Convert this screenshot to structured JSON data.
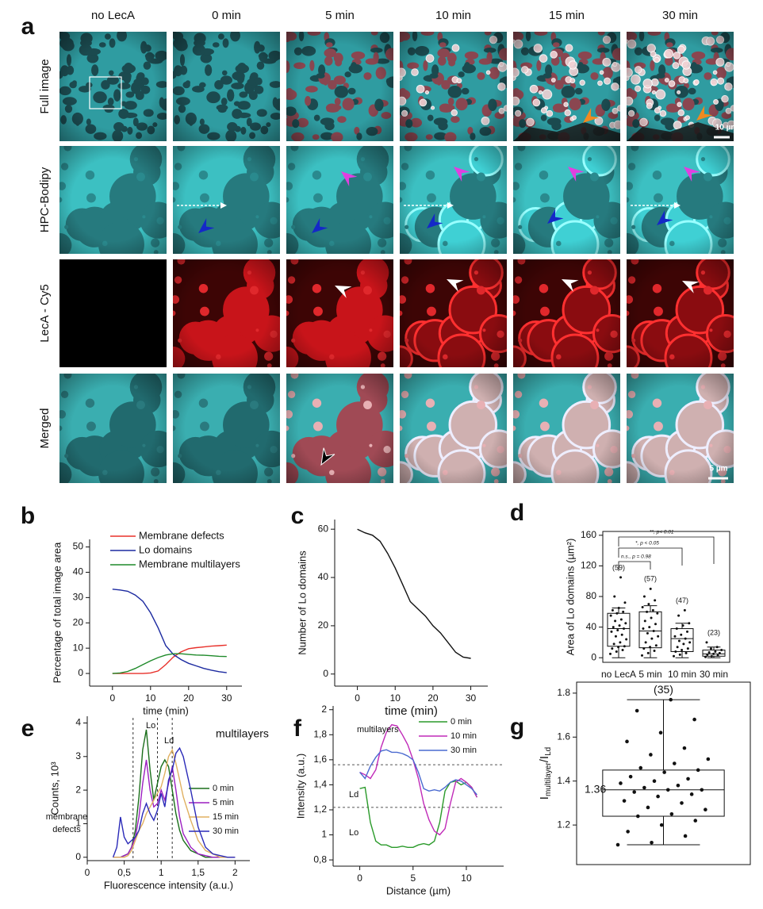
{
  "panel_labels": [
    "a",
    "b",
    "c",
    "d",
    "e",
    "f",
    "g"
  ],
  "panel_a": {
    "columns": [
      "no LecA",
      "0 min",
      "5 min",
      "10 min",
      "15 min",
      "30 min"
    ],
    "rows": [
      "Full image",
      "HPC-Bodipy",
      "LecA - Cy5",
      "Merged"
    ],
    "scale_bars": [
      "10 µm",
      "5 µm"
    ]
  },
  "chart_data": [
    {
      "type": "line",
      "xlabel": "time (min)",
      "ylabel": "Percentage of total image area",
      "x": [
        0,
        2,
        4,
        6,
        8,
        10,
        12,
        14,
        16,
        18,
        20,
        22,
        24,
        26,
        28,
        30
      ],
      "xlim": [
        -6,
        34
      ],
      "xticks": [
        0,
        10,
        20,
        30
      ],
      "ylim": [
        -5,
        53
      ],
      "yticks": [
        0,
        10,
        20,
        30,
        40,
        50
      ],
      "series": [
        {
          "name": "Membrane defects",
          "color": "#e8302a",
          "values": [
            0,
            0,
            0,
            0,
            0,
            0.2,
            1,
            3.5,
            6.5,
            8.5,
            9.8,
            10.2,
            10.5,
            10.8,
            11,
            11.2
          ]
        },
        {
          "name": "Lo domains",
          "color": "#1c2aa0",
          "values": [
            33.3,
            33,
            32.5,
            31,
            28.5,
            24,
            18,
            11,
            7.5,
            5.5,
            4,
            3,
            2,
            1.3,
            0.7,
            0.3
          ]
        },
        {
          "name": "Membrane multilayers",
          "color": "#1f8a2a",
          "values": [
            0,
            0.2,
            0.8,
            2,
            3.5,
            5,
            6.3,
            7.3,
            7.8,
            7.8,
            7.5,
            7.3,
            7.2,
            7,
            6.8,
            6.7
          ]
        }
      ]
    },
    {
      "type": "line",
      "xlabel": "time (min)",
      "ylabel": "Number of Lo domains",
      "x": [
        0,
        2,
        4,
        6,
        8,
        10,
        12,
        14,
        16,
        18,
        20,
        22,
        24,
        26,
        28,
        30
      ],
      "xlim": [
        -6,
        34.5
      ],
      "xticks": [
        0,
        10,
        20,
        30
      ],
      "ylim": [
        -5,
        64
      ],
      "yticks": [
        0,
        20,
        40,
        60
      ],
      "series": [
        {
          "color": "#111111",
          "values": [
            60,
            58.5,
            57.5,
            55,
            50,
            44,
            37,
            30,
            27,
            24,
            20,
            17,
            13,
            9,
            7,
            6.5
          ]
        }
      ]
    },
    {
      "type": "box",
      "ylabel": "Area of Lo domains (µm²)",
      "categories": [
        "no LecA",
        "5 min",
        "10 min",
        "30 min"
      ],
      "count_labels": [
        "(59)",
        "(57)",
        "(47)",
        "(23)"
      ],
      "significance": [
        "n.s., p = 0.98",
        "*, p < 0.05",
        "**, p< 0.01"
      ],
      "ylim": [
        -6,
        165
      ],
      "yticks": [
        0,
        40,
        80,
        120,
        160
      ],
      "boxes": [
        {
          "whisker_low": 0,
          "q1": 15,
          "median": 38,
          "q3": 58,
          "whisker_high": 65,
          "points": [
            5,
            8,
            10,
            12,
            14,
            15,
            18,
            20,
            24,
            28,
            30,
            34,
            36,
            38,
            40,
            42,
            45,
            48,
            50,
            55,
            58,
            60,
            62,
            65,
            72,
            80,
            105
          ]
        },
        {
          "whisker_low": 0,
          "q1": 13,
          "median": 35,
          "q3": 60,
          "whisker_high": 68,
          "points": [
            3,
            6,
            9,
            12,
            14,
            16,
            20,
            25,
            28,
            32,
            35,
            38,
            40,
            44,
            48,
            52,
            58,
            60,
            62,
            66,
            70,
            75,
            80,
            90
          ]
        },
        {
          "whisker_low": 0,
          "q1": 8,
          "median": 25,
          "q3": 38,
          "whisker_high": 45,
          "points": [
            2,
            4,
            6,
            8,
            10,
            12,
            14,
            18,
            20,
            22,
            25,
            28,
            30,
            34,
            38,
            42,
            45,
            55,
            62
          ]
        },
        {
          "whisker_low": 0,
          "q1": 2,
          "median": 5,
          "q3": 10,
          "whisker_high": 14,
          "points": [
            1,
            2,
            3,
            4,
            5,
            6,
            7,
            8,
            10,
            12,
            14,
            20
          ]
        }
      ]
    },
    {
      "type": "line",
      "xlabel": "Fluorescence intensity (a.u.)",
      "ylabel": "Counts, 10³",
      "x": [
        0.35,
        0.4,
        0.45,
        0.5,
        0.55,
        0.6,
        0.65,
        0.7,
        0.75,
        0.8,
        0.85,
        0.9,
        0.95,
        1.0,
        1.05,
        1.1,
        1.15,
        1.2,
        1.25,
        1.3,
        1.4,
        1.5,
        1.6,
        1.7,
        1.8,
        1.9,
        2.0
      ],
      "xlim": [
        0,
        2.2
      ],
      "xticks": [
        0,
        {
          "value": 0.5,
          "label": "0,5"
        },
        1,
        {
          "value": 1.5,
          "label": "1,5"
        },
        2
      ],
      "ylim": [
        -0.1,
        4.2
      ],
      "yticks": [
        0,
        1,
        2,
        3,
        4
      ],
      "vlines": [
        0.62,
        0.95,
        1.15
      ],
      "annotations": [
        "Lo",
        "Ld",
        "multilayers",
        "membrane",
        "defects"
      ],
      "series": [
        {
          "name": "0 min",
          "color": "#1a6e1a",
          "values": [
            0,
            0,
            0,
            0.05,
            0.1,
            0.3,
            0.8,
            1.8,
            3.2,
            3.8,
            2.6,
            1.7,
            2.2,
            2.7,
            2.9,
            2.7,
            2,
            1.3,
            0.8,
            0.5,
            0.2,
            0.1,
            0,
            0,
            0,
            0,
            0
          ]
        },
        {
          "name": "5 min",
          "color": "#9b1fc0",
          "values": [
            0,
            0,
            0,
            0.05,
            0.1,
            0.3,
            0.6,
            1.2,
            2.2,
            2.9,
            2,
            1.5,
            1.6,
            2,
            1.7,
            2.2,
            2.7,
            2,
            1.2,
            0.7,
            0.3,
            0.1,
            0.05,
            0,
            0,
            0,
            0
          ]
        },
        {
          "name": "15 min",
          "color": "#e0b060",
          "values": [
            0,
            0,
            0,
            0,
            0.05,
            0.2,
            0.5,
            0.8,
            1,
            1.3,
            1.5,
            1.7,
            1.9,
            2.1,
            2.5,
            3,
            3.2,
            2.8,
            2.3,
            1.8,
            1.1,
            0.5,
            0.2,
            0.1,
            0,
            0,
            0
          ]
        },
        {
          "name": "30 min",
          "color": "#2a2ab8",
          "values": [
            0,
            0.3,
            1.2,
            0.6,
            0.4,
            0.5,
            0.6,
            0.8,
            1.3,
            1.6,
            1.3,
            1.1,
            1.4,
            1.9,
            1.5,
            2.3,
            2.6,
            3.1,
            3.25,
            3,
            2,
            0.9,
            0.3,
            0.1,
            0.05,
            0,
            0
          ]
        }
      ]
    },
    {
      "type": "line",
      "xlabel": "Distance (µm)",
      "ylabel": "Intensity (a.u.)",
      "x": [
        0,
        0.5,
        1,
        1.5,
        2,
        2.5,
        3,
        3.5,
        4,
        4.5,
        5,
        5.5,
        6,
        6.5,
        7,
        7.5,
        8,
        8.5,
        9,
        9.5,
        10,
        10.5,
        11
      ],
      "xlim": [
        -2.5,
        13.5
      ],
      "xticks": [
        0,
        5,
        10
      ],
      "ylim": [
        0.75,
        2.03
      ],
      "yticks": [
        {
          "value": 0.8,
          "label": "0,8"
        },
        1,
        {
          "value": 1.2,
          "label": "1,2"
        },
        {
          "value": 1.4,
          "label": "1,4"
        },
        {
          "value": 1.6,
          "label": "1,6"
        },
        {
          "value": 1.8,
          "label": "1,8"
        },
        2
      ],
      "hlines": [
        1.56,
        1.22
      ],
      "annotations": [
        "multilayers",
        "Ld",
        "Lo"
      ],
      "series": [
        {
          "name": "0 min",
          "color": "#2a9a2a",
          "values": [
            1.37,
            1.38,
            1.1,
            0.95,
            0.92,
            0.92,
            0.9,
            0.9,
            0.91,
            0.9,
            0.9,
            0.92,
            0.93,
            0.92,
            0.95,
            1.1,
            1.35,
            1.42,
            1.43,
            1.4,
            1.42,
            1.38,
            1.3
          ]
        },
        {
          "name": "10 min",
          "color": "#c02ab8",
          "values": [
            1.5,
            1.48,
            1.45,
            1.52,
            1.7,
            1.82,
            1.88,
            1.87,
            1.8,
            1.72,
            1.6,
            1.45,
            1.25,
            1.12,
            1.03,
            1,
            1.05,
            1.25,
            1.42,
            1.45,
            1.42,
            1.38,
            1.3
          ]
        },
        {
          "name": "30 min",
          "color": "#4a6ad0",
          "values": [
            1.5,
            1.45,
            1.55,
            1.62,
            1.67,
            1.68,
            1.66,
            1.66,
            1.65,
            1.63,
            1.6,
            1.5,
            1.37,
            1.35,
            1.36,
            1.35,
            1.38,
            1.42,
            1.44,
            1.43,
            1.4,
            1.37,
            1.32
          ]
        }
      ]
    },
    {
      "type": "box",
      "ylabel_parts": [
        "I",
        "multilayer",
        "/I",
        "Ld"
      ],
      "count_labels": [
        "(35)"
      ],
      "median_label": "1.36",
      "ylim": [
        1.02,
        1.85
      ],
      "yticks": [
        1.2,
        1.4,
        1.6,
        1.8
      ],
      "boxes": [
        {
          "whisker_low": 1.11,
          "q1": 1.24,
          "median": 1.36,
          "q3": 1.45,
          "whisker_high": 1.77,
          "points": [
            1.11,
            1.12,
            1.15,
            1.17,
            1.2,
            1.22,
            1.24,
            1.25,
            1.27,
            1.28,
            1.3,
            1.31,
            1.33,
            1.34,
            1.35,
            1.36,
            1.36,
            1.37,
            1.38,
            1.39,
            1.4,
            1.41,
            1.42,
            1.44,
            1.45,
            1.46,
            1.48,
            1.5,
            1.52,
            1.55,
            1.58,
            1.62,
            1.68,
            1.72,
            1.77
          ]
        }
      ]
    }
  ]
}
